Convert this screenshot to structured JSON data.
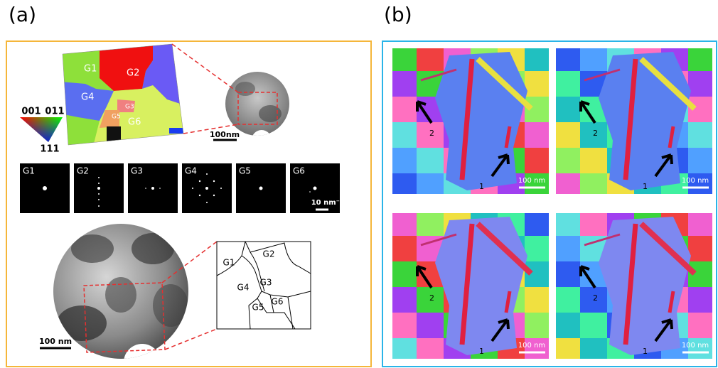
{
  "panel_a": {
    "label": "(a)",
    "orientation_map": {
      "grains": [
        "G1",
        "G2",
        "G3",
        "G4",
        "G5",
        "G6"
      ]
    },
    "ipf_key": {
      "labels": [
        "001",
        "011",
        "111"
      ]
    },
    "top_scale_bar": "100nm",
    "diffraction": {
      "labels": [
        "G1",
        "G2",
        "G3",
        "G4",
        "G5",
        "G6"
      ],
      "scale_bar": "10 nm⁻¹"
    },
    "bottom_scale_bar": "100 nm",
    "sketch": {
      "grains": [
        "G1",
        "G2",
        "G3",
        "G4",
        "G5",
        "G6"
      ]
    }
  },
  "panel_b": {
    "label": "(b)",
    "maps": [
      {
        "arrow_labels": [
          "2",
          "1"
        ],
        "scale_bar": "100 nm"
      },
      {
        "arrow_labels": [
          "2",
          "1"
        ],
        "scale_bar": "100 nm"
      },
      {
        "arrow_labels": [
          "2",
          "1"
        ],
        "scale_bar": "100 nm"
      },
      {
        "arrow_labels": [
          "2",
          "1"
        ],
        "scale_bar": "100 nm"
      }
    ]
  }
}
